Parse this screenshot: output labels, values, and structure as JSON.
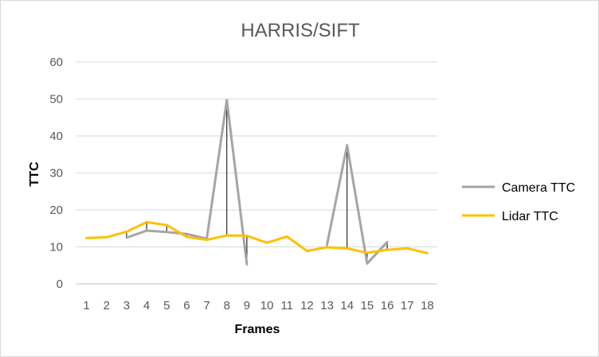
{
  "chart_data": {
    "type": "line",
    "title": "HARRIS/SIFT",
    "xlabel": "Frames",
    "ylabel": "TTC",
    "categories": [
      "1",
      "2",
      "3",
      "4",
      "5",
      "6",
      "7",
      "8",
      "9",
      "10",
      "11",
      "12",
      "13",
      "14",
      "15",
      "16",
      "17",
      "18"
    ],
    "ylim": [
      0,
      60
    ],
    "yticks": [
      0,
      10,
      20,
      30,
      40,
      50,
      60
    ],
    "grid": true,
    "legend_position": "right",
    "series": [
      {
        "name": "Camera TTC",
        "color": "#a5a5a5",
        "values": [
          null,
          null,
          12.5,
          14.4,
          14.0,
          13.5,
          12.2,
          49.7,
          5.3,
          null,
          null,
          null,
          10.6,
          37.5,
          5.5,
          11.3,
          null,
          null
        ]
      },
      {
        "name": "Lidar TTC",
        "color": "#ffc000",
        "values": [
          12.4,
          12.6,
          14.1,
          16.7,
          15.9,
          12.7,
          11.9,
          13.1,
          13.0,
          11.1,
          12.8,
          8.9,
          9.9,
          9.6,
          8.4,
          9.2,
          9.6,
          8.3
        ]
      }
    ]
  }
}
